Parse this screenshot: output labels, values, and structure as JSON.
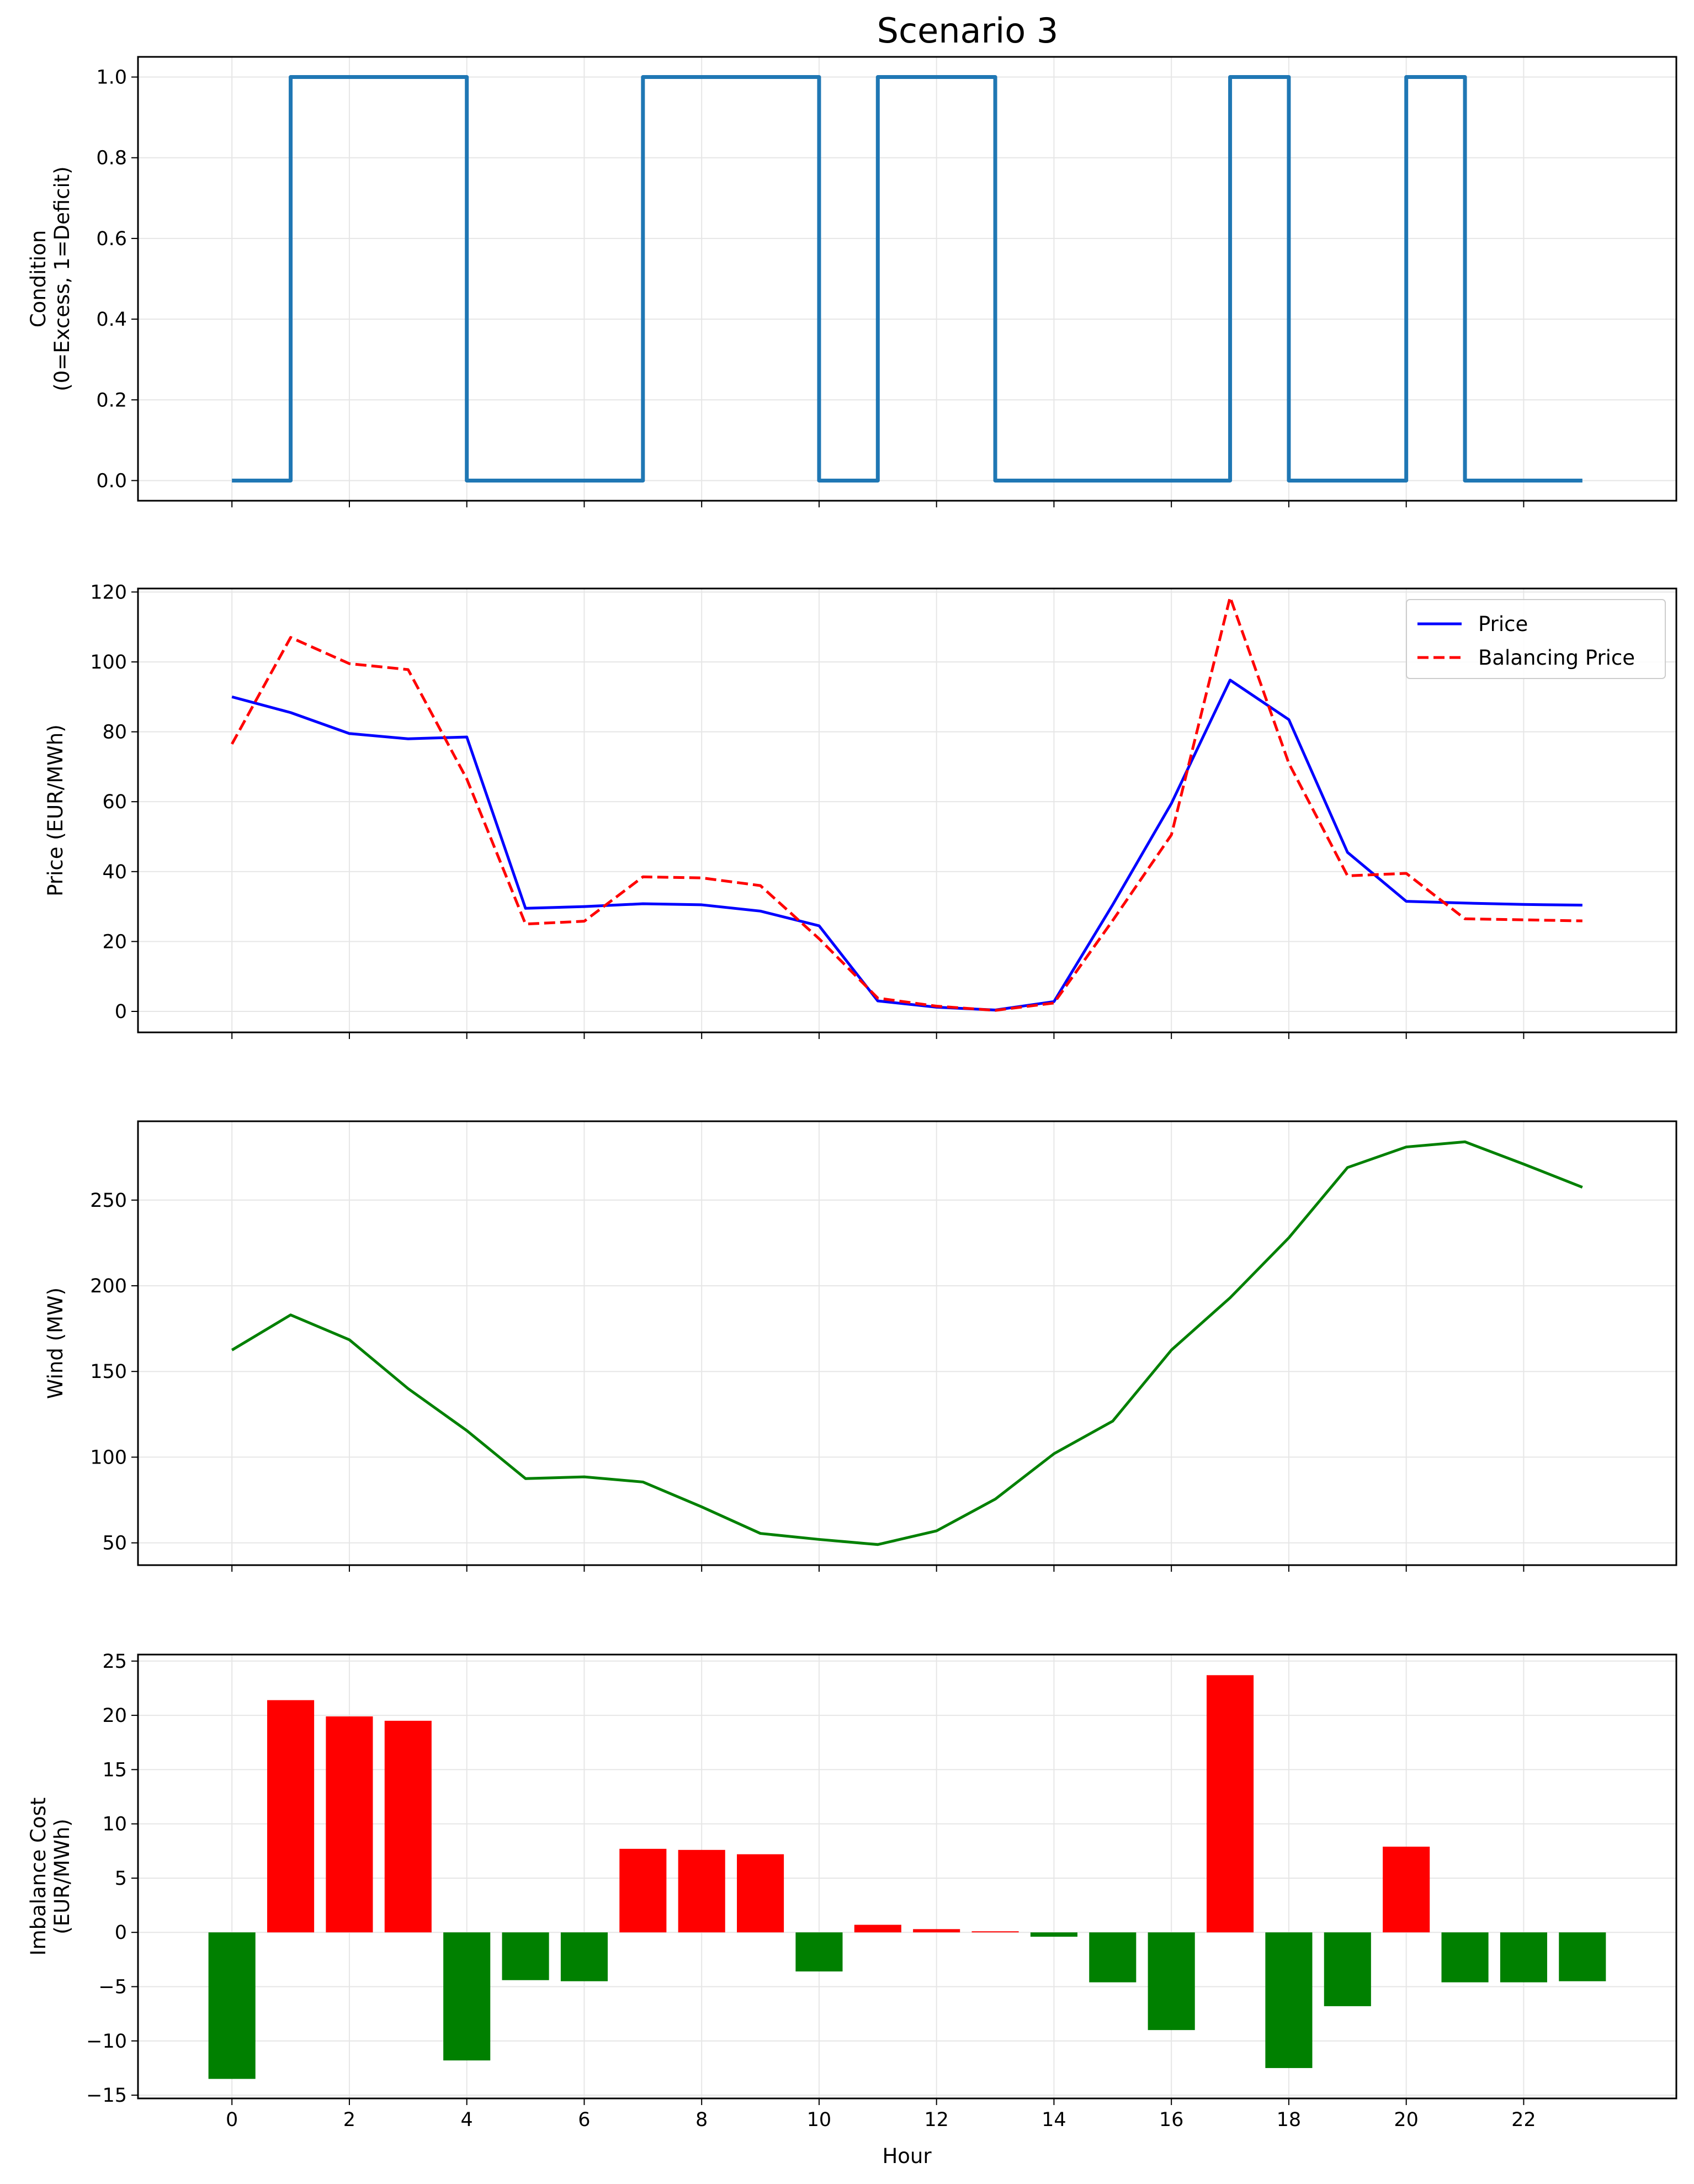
{
  "title": "Scenario 3",
  "xlabel": "Hour",
  "chart_data": [
    {
      "type": "line",
      "step": "post",
      "ylabel_lines": [
        "Condition",
        "(0=Excess, 1=Deficit)"
      ],
      "ylim": [
        -0.05,
        1.05
      ],
      "yticks": [
        "0.0",
        "0.2",
        "0.4",
        "0.6",
        "0.8",
        "1.0"
      ],
      "grid": true,
      "series": [
        {
          "color": "#1f77b4",
          "x": [
            0,
            1,
            2,
            3,
            4,
            5,
            6,
            7,
            8,
            9,
            10,
            11,
            12,
            13,
            14,
            15,
            16,
            17,
            18,
            19,
            20,
            21,
            22,
            23
          ],
          "values": [
            0,
            1,
            1,
            1,
            0,
            0,
            0,
            1,
            1,
            1,
            0,
            1,
            1,
            0,
            0,
            0,
            0,
            1,
            0,
            0,
            1,
            0,
            0,
            0
          ]
        }
      ]
    },
    {
      "type": "line",
      "ylabel_lines": [
        "Price (EUR/MWh)"
      ],
      "ylim": [
        -6,
        121
      ],
      "yticks": [
        "0",
        "20",
        "40",
        "60",
        "80",
        "100",
        "120"
      ],
      "grid": true,
      "legend": "top-right",
      "series": [
        {
          "name": "Price",
          "color": "#0000ff",
          "dash": false,
          "x": [
            0,
            1,
            2,
            3,
            4,
            5,
            6,
            7,
            8,
            9,
            10,
            11,
            12,
            13,
            14,
            15,
            16,
            17,
            18,
            19,
            20,
            21,
            22,
            23
          ],
          "values": [
            90,
            85.5,
            79.5,
            78,
            78.5,
            29.5,
            30,
            30.8,
            30.5,
            28.7,
            24.5,
            3,
            1.2,
            0.4,
            2.8,
            30.5,
            59.5,
            94.8,
            83.5,
            45.5,
            31.5,
            31,
            30.6,
            30.4
          ]
        },
        {
          "name": "Balancing Price",
          "color": "#ff0000",
          "dash": true,
          "x": [
            0,
            1,
            2,
            3,
            4,
            5,
            6,
            7,
            8,
            9,
            10,
            11,
            12,
            13,
            14,
            15,
            16,
            17,
            18,
            19,
            20,
            21,
            22,
            23
          ],
          "values": [
            76.5,
            107,
            99.5,
            97.8,
            66.5,
            25,
            25.8,
            38.5,
            38.2,
            36,
            20.8,
            3.8,
            1.5,
            0.3,
            2.4,
            26,
            50.5,
            118.5,
            71,
            38.8,
            39.5,
            26.5,
            26.2,
            25.9
          ]
        }
      ]
    },
    {
      "type": "line",
      "ylabel_lines": [
        "Wind (MW)"
      ],
      "ylim": [
        37,
        296
      ],
      "yticks": [
        "50",
        "100",
        "150",
        "200",
        "250"
      ],
      "grid": true,
      "series": [
        {
          "color": "#008000",
          "x": [
            0,
            1,
            2,
            3,
            4,
            5,
            6,
            7,
            8,
            9,
            10,
            11,
            12,
            13,
            14,
            15,
            16,
            17,
            18,
            19,
            20,
            21,
            22,
            23
          ],
          "values": [
            162.5,
            183,
            168.5,
            140,
            115.5,
            87.5,
            88.5,
            85.5,
            71,
            55.5,
            52,
            49,
            57,
            75.5,
            102,
            121,
            162.5,
            193,
            228,
            269,
            281,
            284,
            271,
            257.5
          ]
        }
      ]
    },
    {
      "type": "bar",
      "ylabel_lines": [
        "Imbalance Cost",
        "(EUR/MWh)"
      ],
      "ylim": [
        -15.3,
        25.6
      ],
      "yticks": [
        "-15",
        "-10",
        "-5",
        "0",
        "5",
        "10",
        "15",
        "20",
        "25"
      ],
      "grid": true,
      "positive_color": "#ff0000",
      "negative_color": "#008000",
      "x": [
        0,
        1,
        2,
        3,
        4,
        5,
        6,
        7,
        8,
        9,
        10,
        11,
        12,
        13,
        14,
        15,
        16,
        17,
        18,
        19,
        20,
        21,
        22,
        23
      ],
      "values": [
        -13.5,
        21.4,
        19.9,
        19.5,
        -11.8,
        -4.4,
        -4.5,
        7.7,
        7.6,
        7.2,
        -3.6,
        0.7,
        0.3,
        0.1,
        -0.4,
        -4.6,
        -9,
        23.7,
        -12.5,
        -6.8,
        7.9,
        -4.6,
        -4.6,
        -4.5
      ]
    }
  ],
  "xticks": [
    "0",
    "2",
    "4",
    "6",
    "8",
    "10",
    "12",
    "14",
    "16",
    "18",
    "20",
    "22"
  ]
}
